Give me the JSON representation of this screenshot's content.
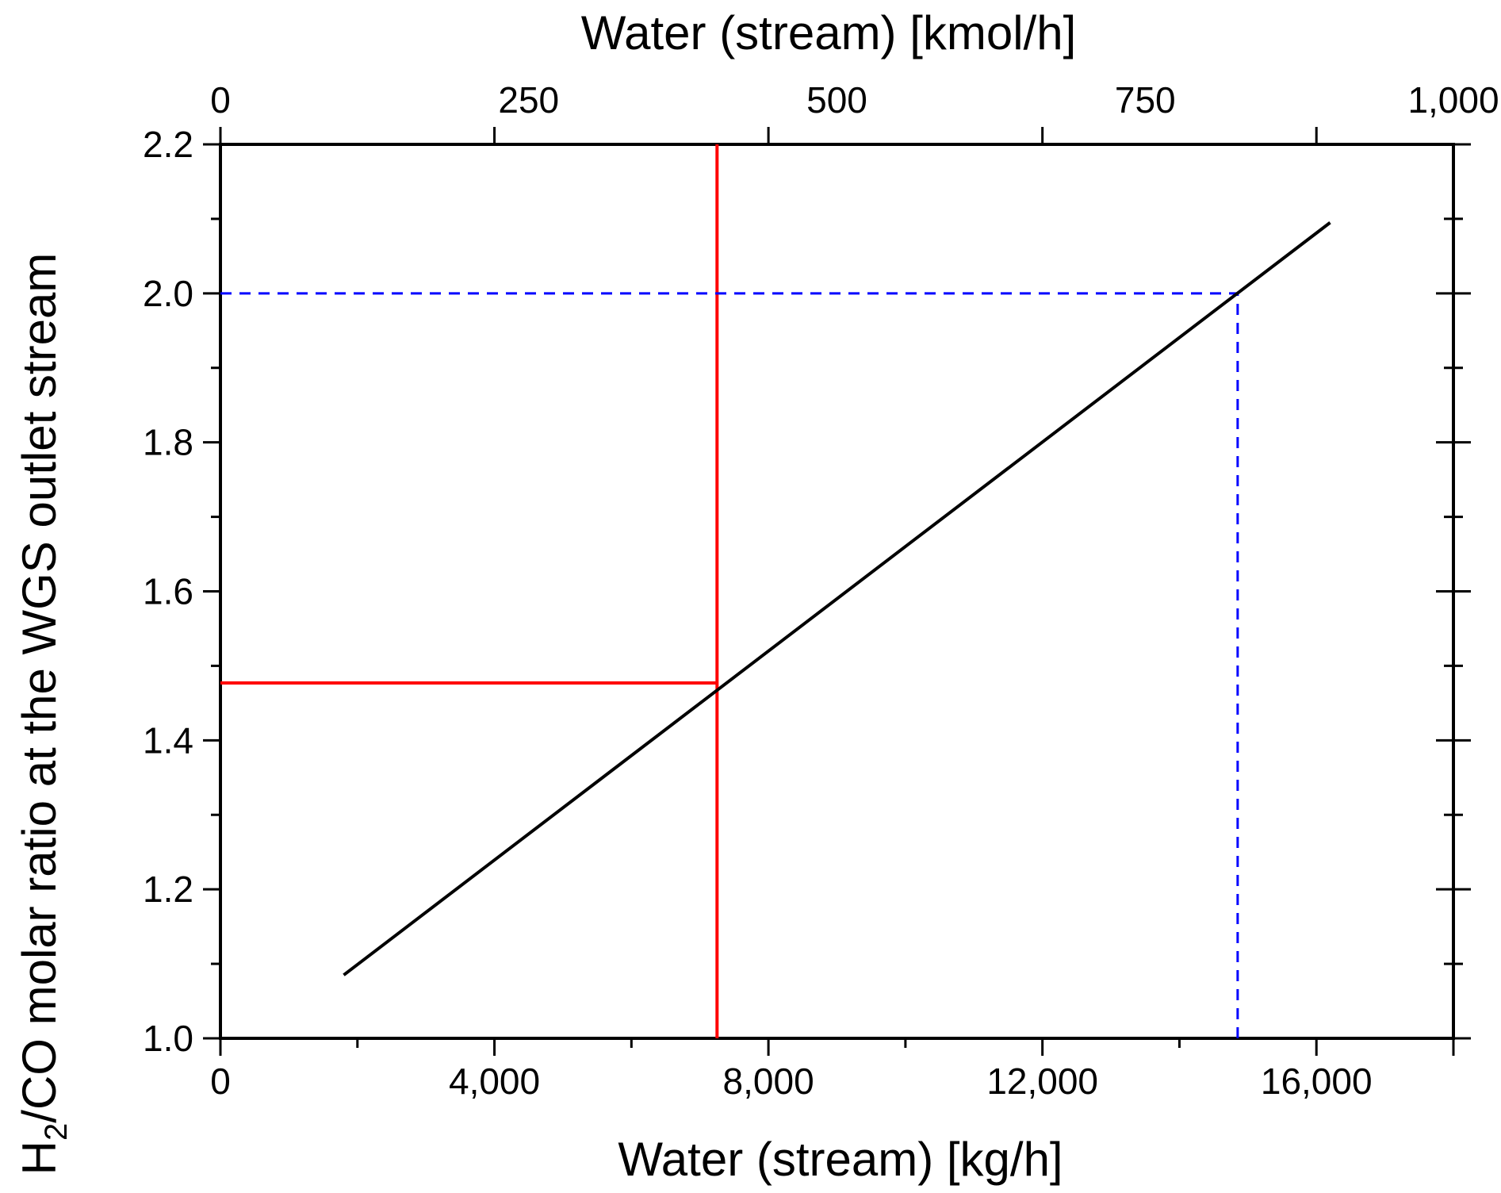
{
  "chart_data": {
    "type": "line",
    "x_bottom": {
      "label": "Water (stream) [kg/h]",
      "range": [
        0,
        18000
      ],
      "major_ticks": [
        0,
        4000,
        8000,
        12000,
        16000
      ],
      "tick_labels": [
        "0",
        "4,000",
        "8,000",
        "12,000",
        "16,000"
      ],
      "minor_step": 2000
    },
    "x_top": {
      "label": "Water (stream)  [kmol/h]",
      "range": [
        0,
        1000
      ],
      "major_ticks": [
        0,
        250,
        500,
        750,
        1000
      ],
      "tick_labels": [
        "0",
        "250",
        "500",
        "750",
        "1,000"
      ]
    },
    "y": {
      "label_main": "H",
      "label_sub": "2",
      "label_rest": "/CO molar ratio at the WGS outlet stream",
      "range": [
        1.0,
        2.2
      ],
      "major_ticks": [
        1.0,
        1.2,
        1.4,
        1.6,
        1.8,
        2.0,
        2.2
      ],
      "tick_labels": [
        "1.0",
        "1.2",
        "1.4",
        "1.6",
        "1.8",
        "2.0",
        "2.2"
      ],
      "minor_step": 0.1
    },
    "series": [
      {
        "name": "H2/CO ratio",
        "color": "#000000",
        "style": "solid",
        "x": [
          1800,
          16200
        ],
        "y": [
          1.085,
          2.095
        ]
      }
    ],
    "reference_lines": [
      {
        "name": "red-operating-point",
        "color": "#ff0000",
        "style": "solid",
        "x": 7250,
        "y": 1.477
      },
      {
        "name": "blue-target-point",
        "color": "#0000ff",
        "style": "dashed",
        "x": 14850,
        "y": 2.0
      }
    ],
    "grid": false
  }
}
